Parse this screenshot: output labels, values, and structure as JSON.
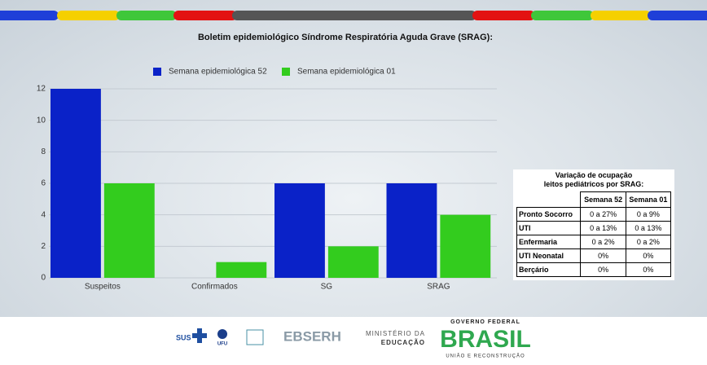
{
  "chart_data": {
    "type": "bar",
    "title": "Boletim epidemiológico Síndrome Respiratória Aguda Grave (SRAG):",
    "categories": [
      "Suspeitos",
      "Confirmados",
      "SG",
      "SRAG"
    ],
    "series": [
      {
        "name": "Semana epidemiológica 52",
        "color": "#0a22c8",
        "values": [
          12,
          0,
          6,
          6
        ]
      },
      {
        "name": "Semana epidemiológica 01",
        "color": "#33cc1e",
        "values": [
          6,
          1,
          2,
          4
        ]
      }
    ],
    "ylim": [
      0,
      12
    ],
    "yticks": [
      0,
      2,
      4,
      6,
      8,
      10,
      12
    ],
    "grid": true,
    "legend": "top"
  },
  "table": {
    "title": [
      "Variação de ocupação",
      "leitos pediátricos por SRAG:"
    ],
    "header": [
      "Semana 52",
      "Semana 01"
    ],
    "rows": [
      [
        "Pronto Socorro",
        "0 a 27%",
        "0 a 9%"
      ],
      [
        "UTI",
        "0 a 13%",
        "0 a 13%"
      ],
      [
        "Enfermaria",
        "0 a 2%",
        "0 a 2%"
      ],
      [
        "UTI Neonatal",
        "0%",
        "0%"
      ],
      [
        "Berçário",
        "0%",
        "0%"
      ]
    ]
  },
  "footer": {
    "logos": [
      "SUS",
      "UFU",
      "EBSERH",
      "MINISTÉRIO DA",
      "EDUCAÇÃO",
      "GOVERNO FEDERAL",
      "BRASIL",
      "UNIÃO E RECONSTRUÇÃO"
    ]
  }
}
